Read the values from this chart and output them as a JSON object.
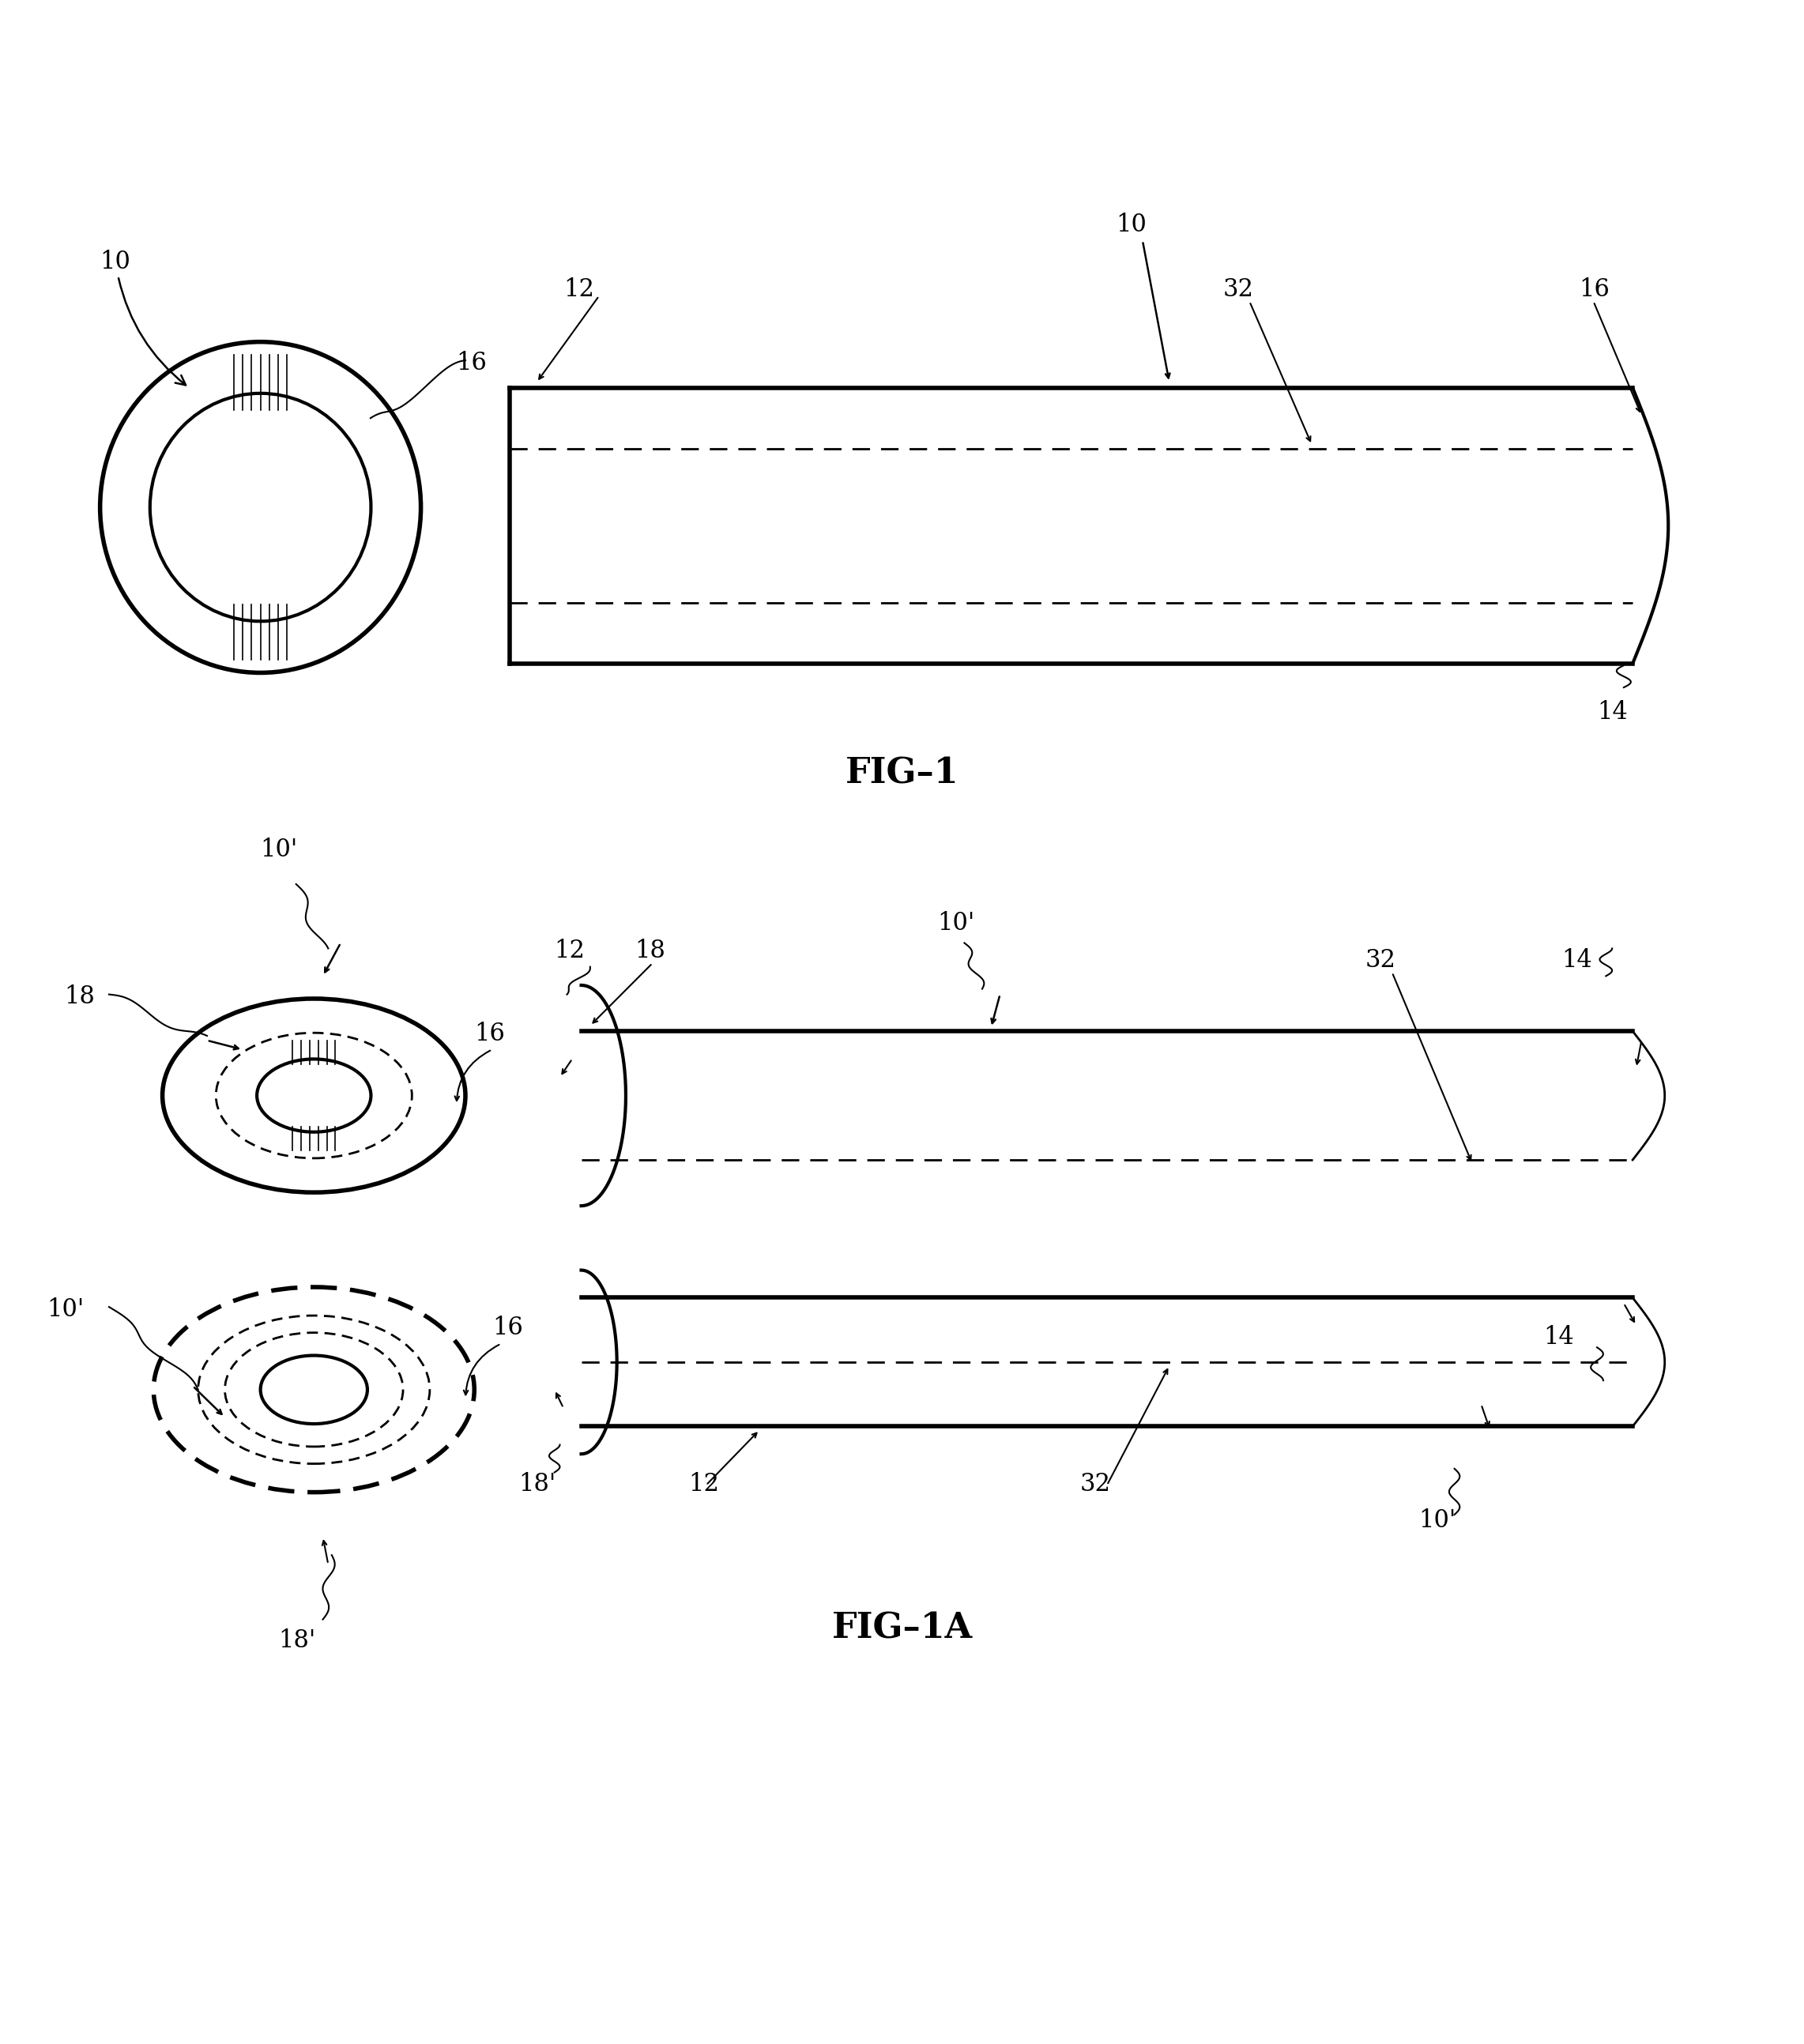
{
  "background": "#ffffff",
  "fig_width": 22.83,
  "fig_height": 25.87,
  "fig1_label": "FIG–1",
  "fig1a_label": "FIG–1A",
  "font_size_label": 32,
  "font_size_ref": 22,
  "line_color": "#000000"
}
